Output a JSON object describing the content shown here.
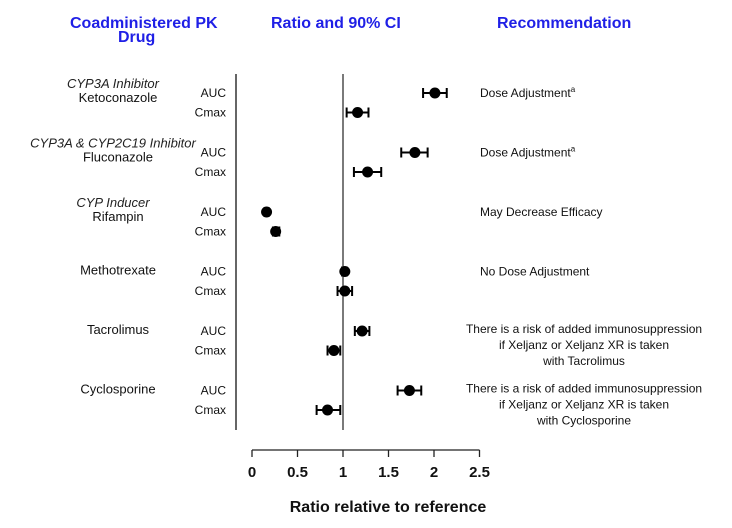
{
  "headers": {
    "drug": [
      "Coadministered PK",
      "Drug"
    ],
    "ratio": "Ratio and 90% CI",
    "recommendation": "Recommendation"
  },
  "colors": {
    "header": "#1f1fe6",
    "marks": "#000000",
    "text": "#111111"
  },
  "chart_data": {
    "type": "scatter",
    "subtype": "forest-plot",
    "xlabel": "Ratio relative to reference",
    "xlim": [
      0,
      2.5
    ],
    "xticks": [
      "0",
      "0.5",
      "1",
      "1.5",
      "2",
      "2.5"
    ],
    "reference_line": 1,
    "drugs": [
      {
        "class": "CYP3A Inhibitor",
        "name": "Ketoconazole",
        "recommendation": [
          "Dose Adjustment"
        ],
        "footnote": "a",
        "params": [
          {
            "name": "AUC",
            "ratio": 2.01,
            "ci": [
              1.88,
              2.14
            ]
          },
          {
            "name": "Cmax",
            "ratio": 1.16,
            "ci": [
              1.04,
              1.28
            ]
          }
        ]
      },
      {
        "class": "CYP3A & CYP2C19 Inhibitor",
        "name": "Fluconazole",
        "recommendation": [
          "Dose Adjustment"
        ],
        "footnote": "a",
        "params": [
          {
            "name": "AUC",
            "ratio": 1.79,
            "ci": [
              1.64,
              1.93
            ]
          },
          {
            "name": "Cmax",
            "ratio": 1.27,
            "ci": [
              1.12,
              1.42
            ]
          }
        ]
      },
      {
        "class": "CYP Inducer",
        "name": "Rifampin",
        "recommendation": [
          "May Decrease Efficacy"
        ],
        "footnote": "",
        "params": [
          {
            "name": "AUC",
            "ratio": 0.16,
            "ci": [
              0.14,
              0.18
            ]
          },
          {
            "name": "Cmax",
            "ratio": 0.26,
            "ci": [
              0.23,
              0.3
            ]
          }
        ]
      },
      {
        "class": "",
        "name": "Methotrexate",
        "recommendation": [
          "No Dose Adjustment"
        ],
        "footnote": "",
        "params": [
          {
            "name": "AUC",
            "ratio": 1.02,
            "ci": [
              0.99,
              1.04
            ]
          },
          {
            "name": "Cmax",
            "ratio": 1.02,
            "ci": [
              0.94,
              1.1
            ]
          }
        ]
      },
      {
        "class": "",
        "name": "Tacrolimus",
        "recommendation": [
          "There is a risk of added immunosuppression",
          "if Xeljanz or Xeljanz XR is taken",
          "with Tacrolimus"
        ],
        "footnote": "",
        "params": [
          {
            "name": "AUC",
            "ratio": 1.21,
            "ci": [
              1.13,
              1.29
            ]
          },
          {
            "name": "Cmax",
            "ratio": 0.9,
            "ci": [
              0.83,
              0.97
            ]
          }
        ]
      },
      {
        "class": "",
        "name": "Cyclosporine",
        "recommendation": [
          "There is a risk of added immunosuppression",
          "if Xeljanz or Xeljanz XR is taken",
          "with Cyclosporine"
        ],
        "footnote": "",
        "params": [
          {
            "name": "AUC",
            "ratio": 1.73,
            "ci": [
              1.6,
              1.86
            ]
          },
          {
            "name": "Cmax",
            "ratio": 0.83,
            "ci": [
              0.71,
              0.97
            ]
          }
        ]
      }
    ]
  }
}
